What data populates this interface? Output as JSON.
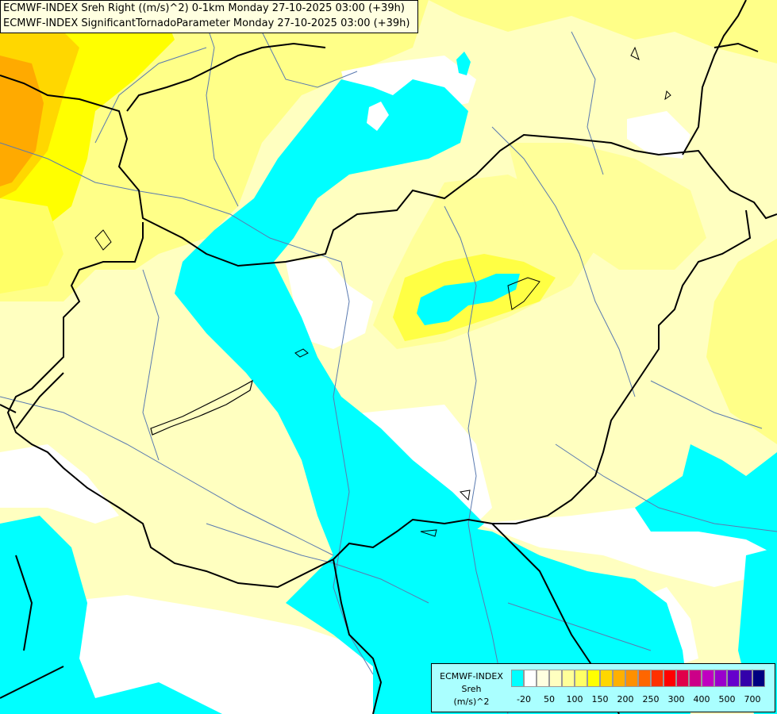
{
  "title": {
    "line1": "ECMWF-INDEX Sreh Right ((m/s)^2) 0-1km Monday 27-10-2025 03:00 (+39h)",
    "line2": "ECMWF-INDEX SignificantTornadoParameter Monday 27-10-2025 03:00 (+39h)"
  },
  "legend": {
    "line1": "ECMWF-INDEX",
    "line2": "Sreh",
    "line3": "(m/s)^2",
    "colors": [
      "#00ffff",
      "#ffffff",
      "#ffffe0",
      "#ffffc0",
      "#ffff99",
      "#ffff66",
      "#ffff00",
      "#ffd700",
      "#ffb000",
      "#ff9000",
      "#ff6600",
      "#ff3000",
      "#ff0000",
      "#e0004a",
      "#cc0088",
      "#c000c0",
      "#9900cc",
      "#6600cc",
      "#3300aa",
      "#000080"
    ],
    "ticks": [
      "-20",
      "50",
      "100",
      "150",
      "200",
      "250",
      "300",
      "400",
      "500",
      "700"
    ]
  },
  "colors": {
    "negative": "#00ffff",
    "zero": "#ffffff",
    "low": "#ffffc0",
    "mid": "#ffff99",
    "high": "#ffff00",
    "higher": "#ffd700",
    "highest": "#ffaa00",
    "border": "#000000",
    "river": "#5a7ab0"
  }
}
